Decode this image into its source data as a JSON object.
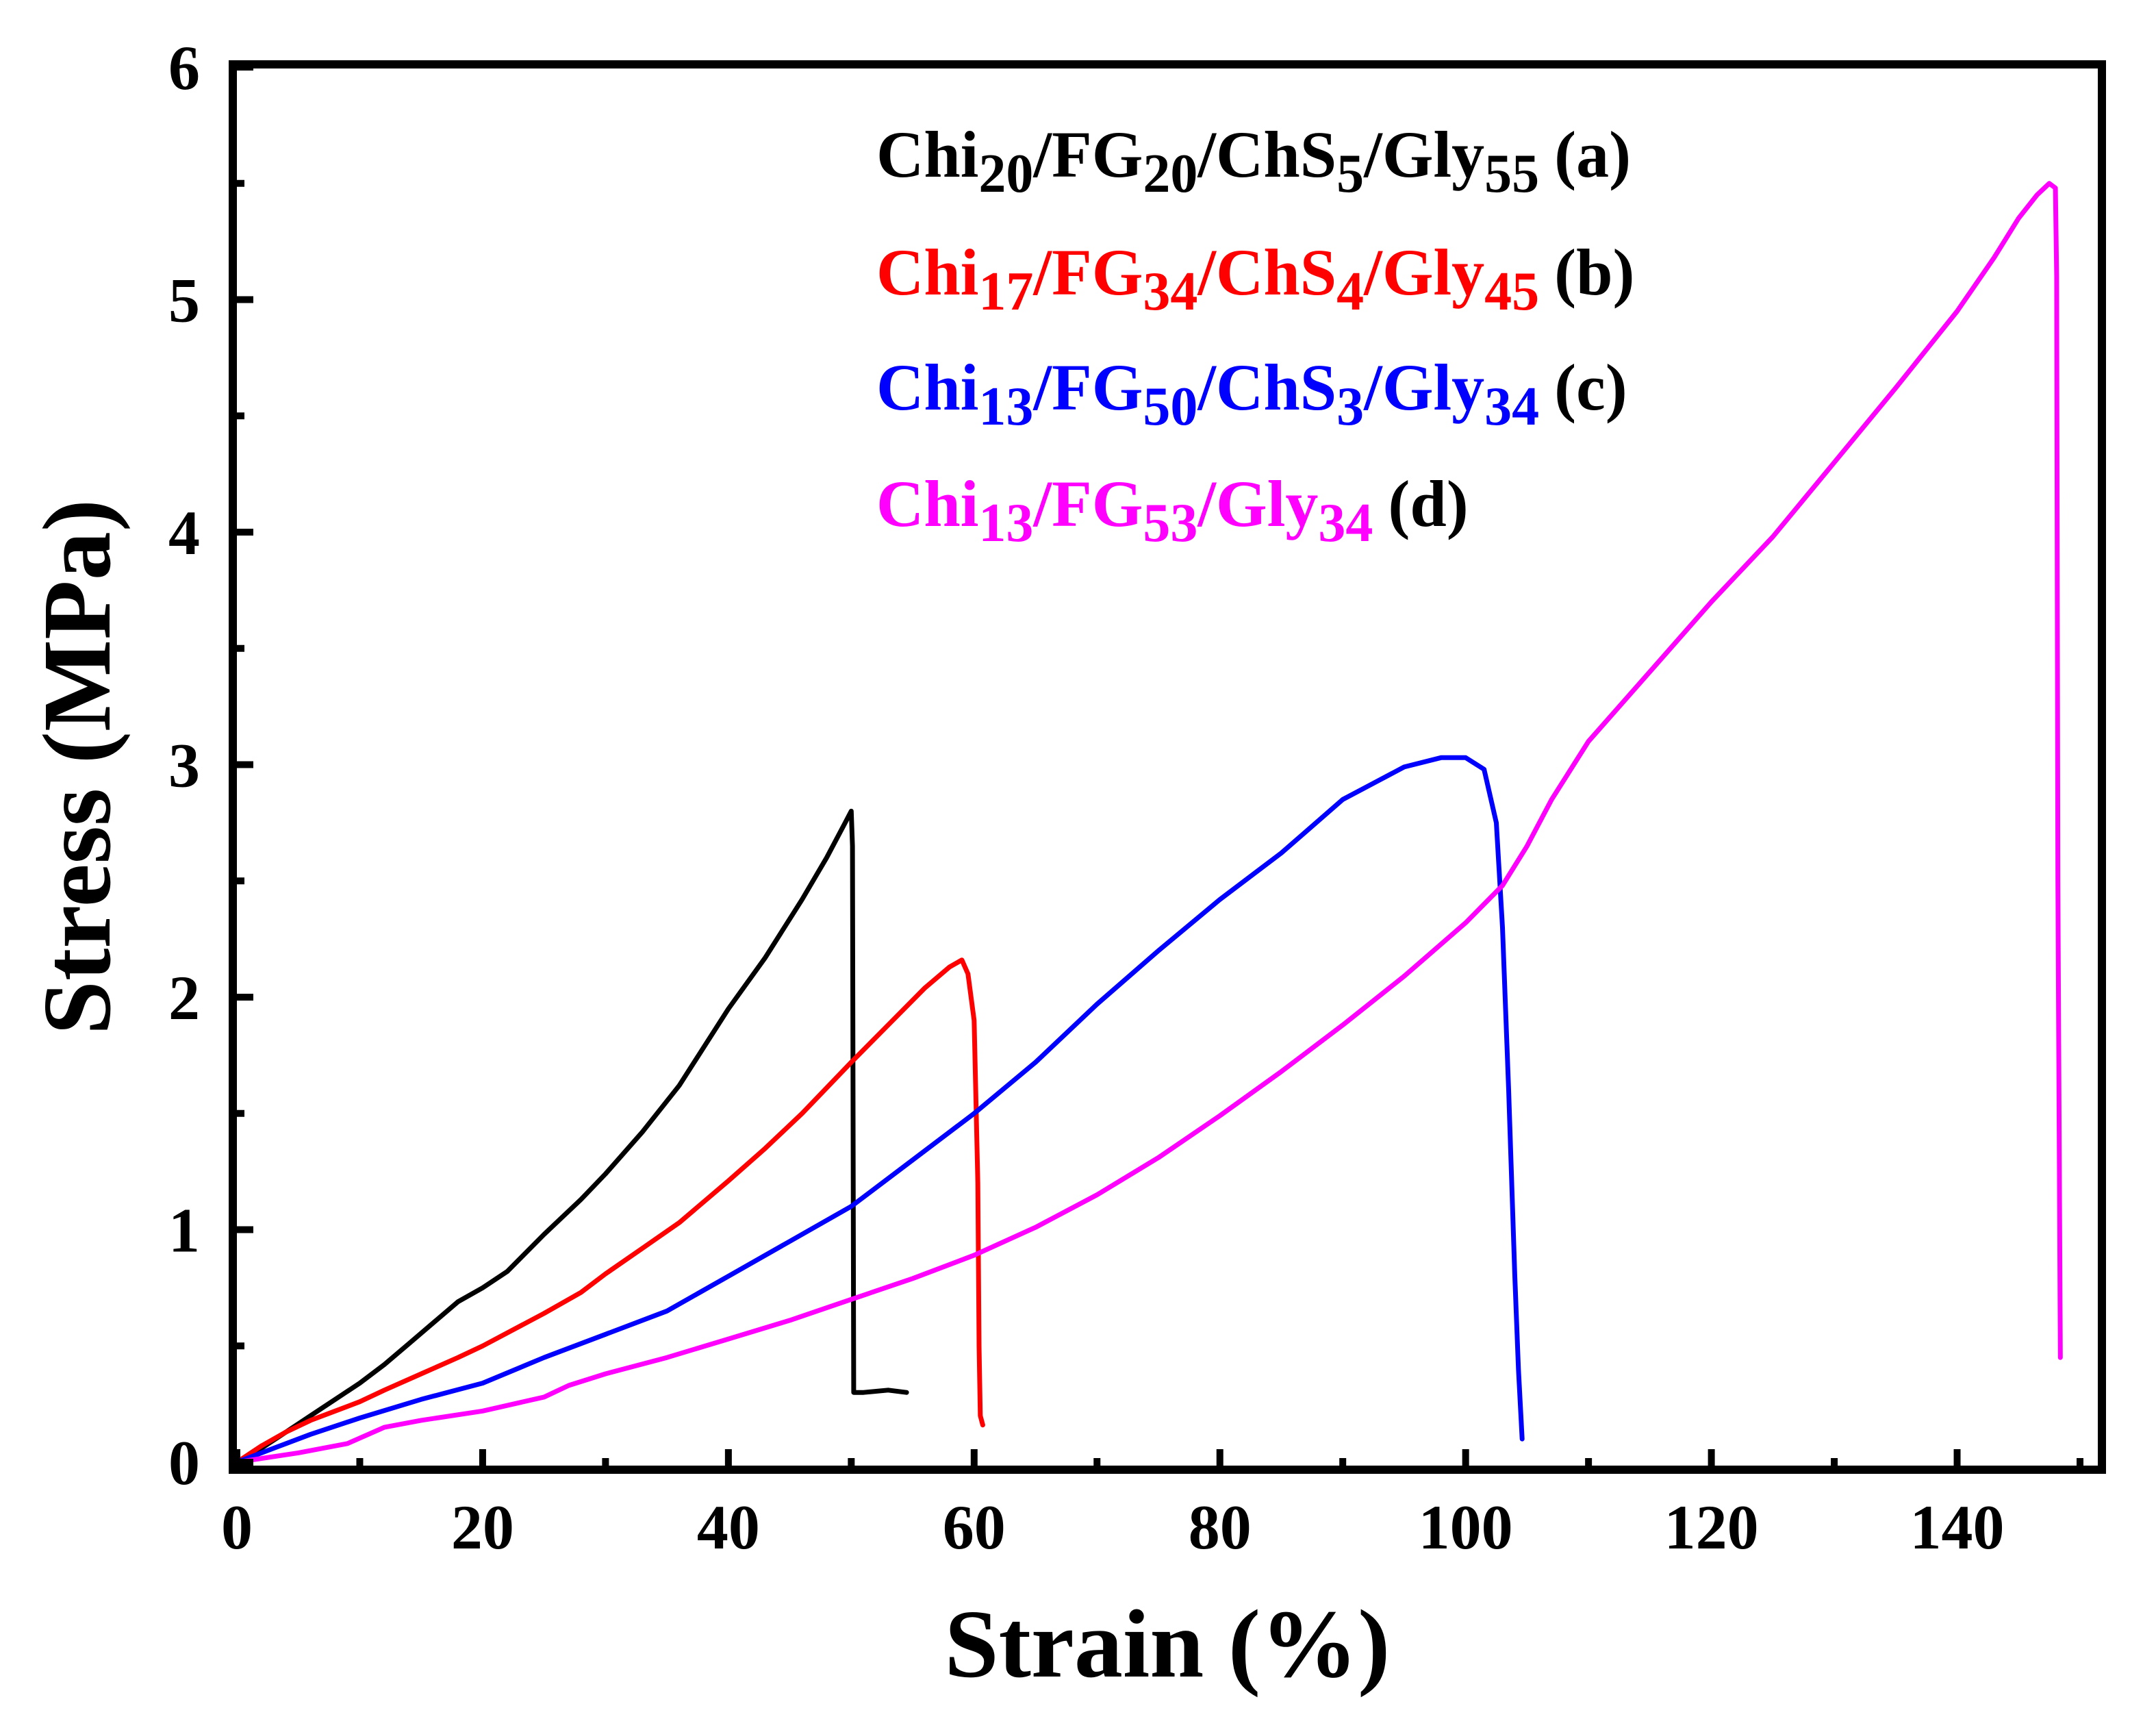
{
  "chart_data": {
    "type": "line",
    "title": "",
    "xlabel": "Strain (%)",
    "ylabel": "Stress (MPa)",
    "xlim": [
      0,
      155
    ],
    "ylim": [
      0,
      6
    ],
    "xticks": [
      0,
      20,
      40,
      60,
      80,
      100,
      120,
      140
    ],
    "xtick_labels": [
      "0",
      "20",
      "40",
      "60",
      "80",
      "100",
      "120",
      "140"
    ],
    "yticks": [
      0,
      1,
      2,
      3,
      4,
      5,
      6
    ],
    "ytick_labels": [
      "0",
      "1",
      "2",
      "3",
      "4",
      "5",
      "6"
    ],
    "grid": false,
    "legend_position": "top-right",
    "series": [
      {
        "name": "Chi20/FG20/ChS5/Gly55 (a)",
        "tag": "(a)",
        "color": "#000000",
        "parts": [
          [
            "Chi",
            ""
          ],
          [
            "20",
            "sub"
          ],
          [
            "/FG",
            ""
          ],
          [
            "20",
            "sub"
          ],
          [
            "/ChS",
            ""
          ],
          [
            "5",
            "sub"
          ],
          [
            "/Gly",
            ""
          ],
          [
            "55",
            "sub"
          ]
        ],
        "x": [
          0,
          2,
          4,
          6,
          8,
          10,
          12,
          14,
          16,
          18,
          20,
          22,
          25,
          28,
          30,
          33,
          36,
          40,
          43,
          46,
          48,
          49.5,
          50,
          50.1,
          50.2,
          51,
          53,
          54.5
        ],
        "y": [
          0,
          0.06,
          0.13,
          0.2,
          0.27,
          0.34,
          0.42,
          0.51,
          0.6,
          0.69,
          0.75,
          0.82,
          0.98,
          1.13,
          1.24,
          1.42,
          1.62,
          1.95,
          2.17,
          2.42,
          2.6,
          2.75,
          2.8,
          2.65,
          0.3,
          0.3,
          0.31,
          0.3
        ]
      },
      {
        "name": "Chi17/FG34/ChS4/Gly45 (b)",
        "tag": "(b)",
        "color": "#ff0000",
        "parts": [
          [
            "Chi",
            ""
          ],
          [
            "17",
            "sub"
          ],
          [
            "/FG",
            ""
          ],
          [
            "34",
            "sub"
          ],
          [
            "/ChS",
            ""
          ],
          [
            "4",
            "sub"
          ],
          [
            "/Gly",
            ""
          ],
          [
            "45",
            "sub"
          ]
        ],
        "x": [
          0,
          2,
          4,
          6,
          8,
          10,
          12,
          15,
          18,
          20,
          25,
          28,
          30,
          33,
          36,
          40,
          43,
          46,
          50,
          53,
          56,
          58,
          59,
          59.5,
          60,
          60.3,
          60.4,
          60.5,
          60.7
        ],
        "y": [
          0,
          0.07,
          0.13,
          0.18,
          0.22,
          0.26,
          0.31,
          0.38,
          0.45,
          0.5,
          0.64,
          0.73,
          0.81,
          0.92,
          1.03,
          1.21,
          1.35,
          1.5,
          1.72,
          1.88,
          2.04,
          2.13,
          2.16,
          2.1,
          1.9,
          1.2,
          0.5,
          0.2,
          0.16
        ]
      },
      {
        "name": "Chi13/FG50/ChS3/Gly34 (c)",
        "tag": "(c)",
        "color": "#0000ff",
        "parts": [
          [
            "Chi",
            ""
          ],
          [
            "13",
            "sub"
          ],
          [
            "/FG",
            ""
          ],
          [
            "50",
            "sub"
          ],
          [
            "/ChS",
            ""
          ],
          [
            "3",
            "sub"
          ],
          [
            "/Gly",
            ""
          ],
          [
            "34",
            "sub"
          ]
        ],
        "x": [
          0,
          3,
          6,
          10,
          15,
          20,
          25,
          30,
          35,
          40,
          45,
          50,
          55,
          60,
          65,
          70,
          75,
          80,
          85,
          90,
          95,
          98,
          100,
          101.5,
          102.5,
          103,
          103.5,
          104,
          104.3,
          104.6
        ],
        "y": [
          0,
          0.06,
          0.12,
          0.19,
          0.27,
          0.34,
          0.45,
          0.55,
          0.65,
          0.8,
          0.95,
          1.1,
          1.3,
          1.5,
          1.72,
          1.97,
          2.2,
          2.42,
          2.62,
          2.85,
          2.99,
          3.03,
          3.03,
          2.98,
          2.75,
          2.3,
          1.6,
          0.8,
          0.4,
          0.1
        ]
      },
      {
        "name": "Chi13/FG53/Gly34 (d)",
        "tag": "(d)",
        "color": "#ff00ff",
        "parts": [
          [
            "Chi",
            ""
          ],
          [
            "13",
            "sub"
          ],
          [
            "/FG",
            ""
          ],
          [
            "53",
            "sub"
          ],
          [
            "/Gly",
            ""
          ],
          [
            "34",
            "sub"
          ]
        ],
        "x": [
          0,
          5,
          9,
          12,
          15,
          20,
          25,
          27,
          30,
          35,
          40,
          45,
          50,
          55,
          60,
          65,
          70,
          75,
          80,
          85,
          90,
          95,
          100,
          103,
          105,
          107,
          110,
          115,
          120,
          125,
          130,
          135,
          140,
          143,
          145,
          146.5,
          147.5,
          148,
          148.1,
          148.2,
          148.4
        ],
        "y": [
          0,
          0.04,
          0.08,
          0.15,
          0.18,
          0.22,
          0.28,
          0.33,
          0.38,
          0.45,
          0.53,
          0.61,
          0.7,
          0.79,
          0.89,
          1.01,
          1.15,
          1.31,
          1.49,
          1.68,
          1.88,
          2.09,
          2.32,
          2.48,
          2.65,
          2.85,
          3.1,
          3.4,
          3.7,
          3.98,
          4.3,
          4.62,
          4.95,
          5.18,
          5.35,
          5.45,
          5.5,
          5.48,
          5.1,
          2.5,
          0.45
        ]
      }
    ]
  }
}
